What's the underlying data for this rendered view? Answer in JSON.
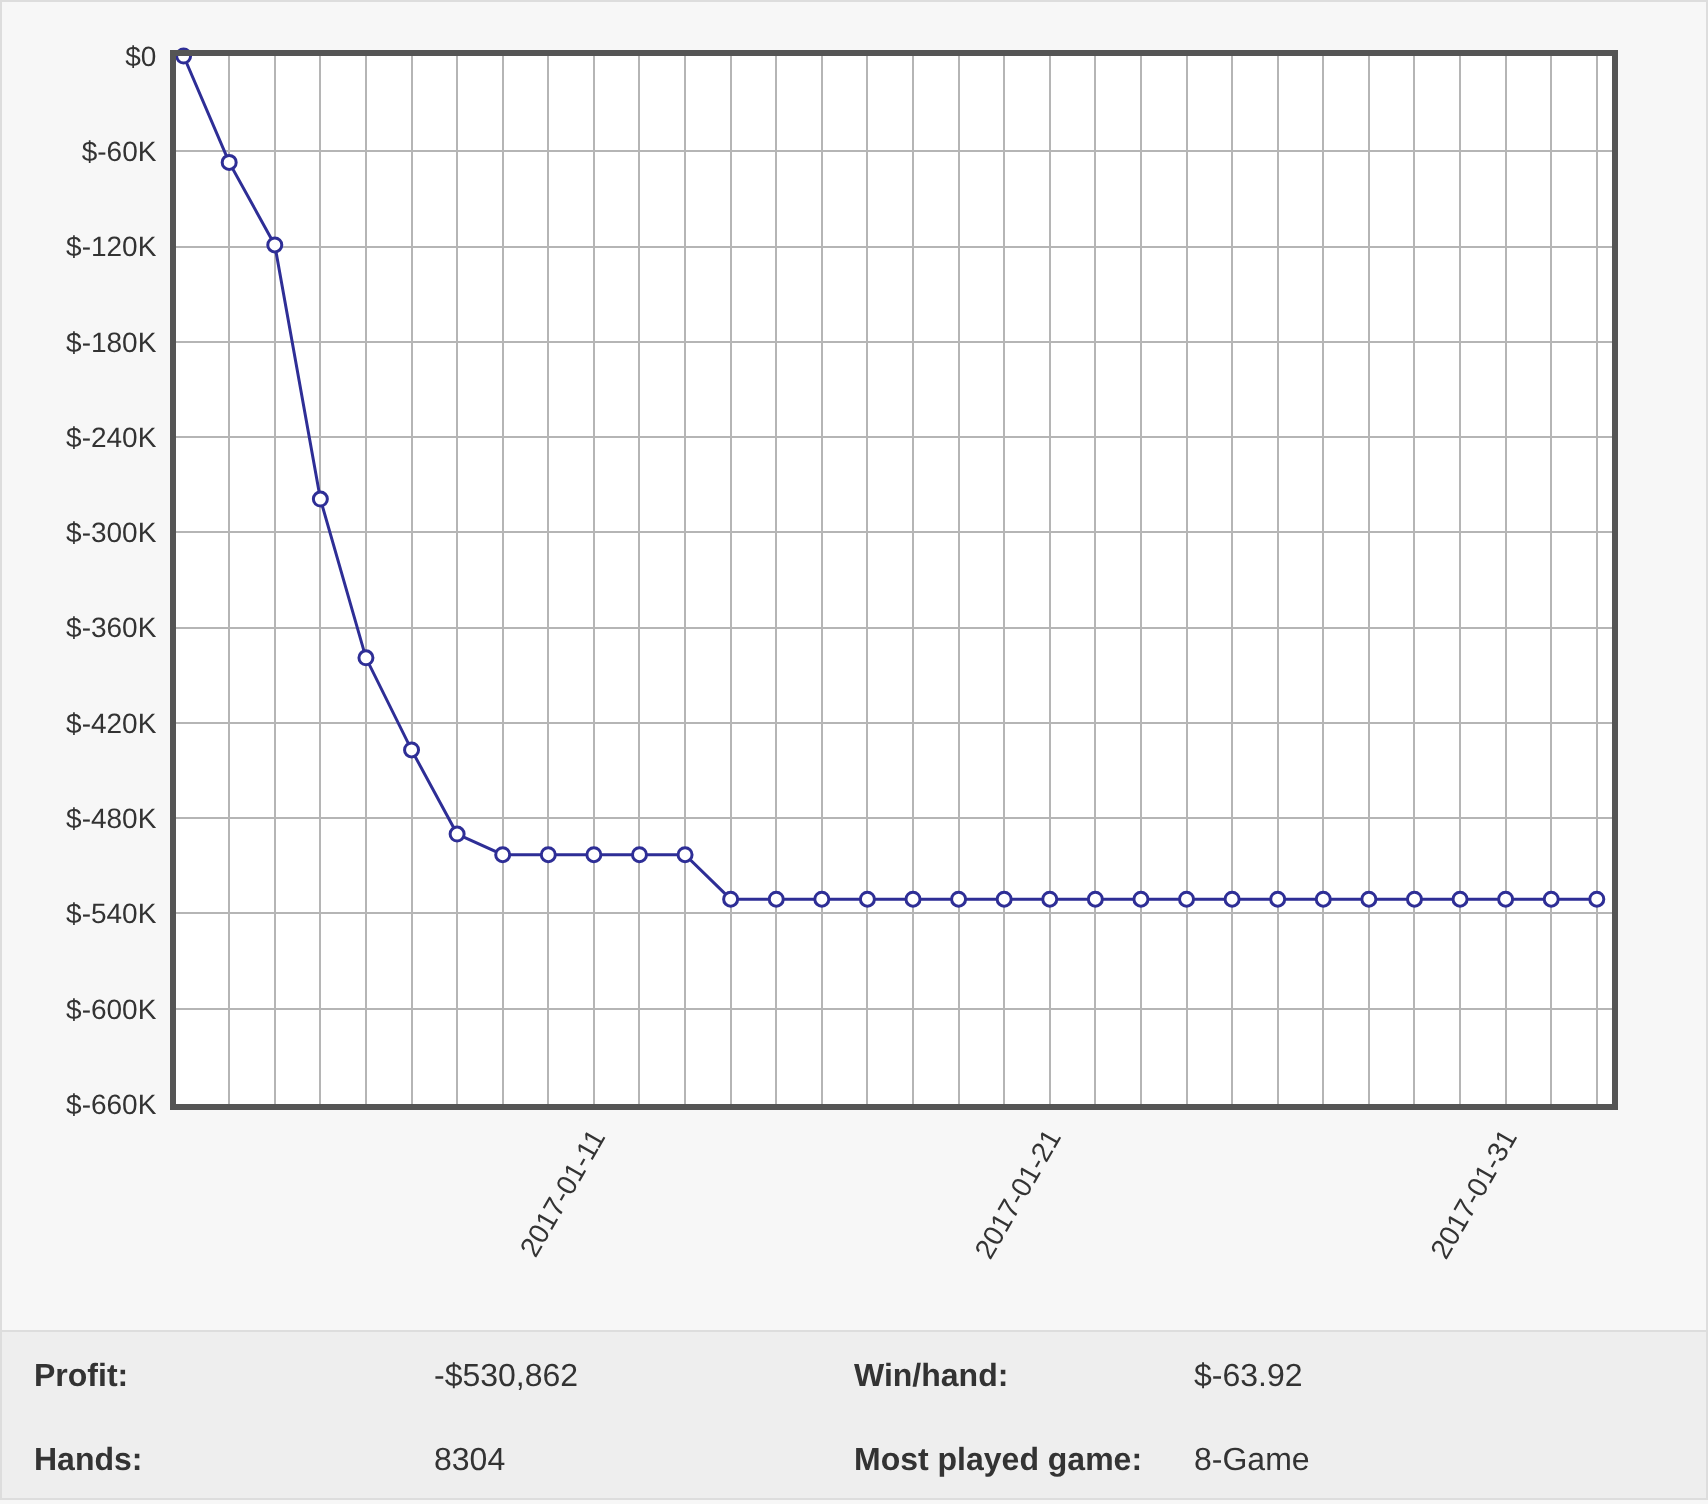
{
  "chart_data": {
    "type": "line",
    "x": [
      "2017-01-02",
      "2017-01-03",
      "2017-01-04",
      "2017-01-05",
      "2017-01-06",
      "2017-01-07",
      "2017-01-08",
      "2017-01-09",
      "2017-01-10",
      "2017-01-11",
      "2017-01-12",
      "2017-01-13",
      "2017-01-14",
      "2017-01-15",
      "2017-01-16",
      "2017-01-17",
      "2017-01-18",
      "2017-01-19",
      "2017-01-20",
      "2017-01-21",
      "2017-01-22",
      "2017-01-23",
      "2017-01-24",
      "2017-01-25",
      "2017-01-26",
      "2017-01-27",
      "2017-01-28",
      "2017-01-29",
      "2017-01-30",
      "2017-01-31",
      "2017-02-01",
      "2017-02-02"
    ],
    "series": [
      {
        "color": "#2e2e96",
        "values": [
          0,
          -67,
          -119,
          -279,
          -379,
          -437,
          -490,
          -503,
          -503,
          -503,
          -503,
          -503,
          -531,
          -531,
          -531,
          -531,
          -531,
          -531,
          -531,
          -531,
          -531,
          -531,
          -531,
          -531,
          -531,
          -531,
          -531,
          -531,
          -531,
          -531,
          -531,
          -531
        ]
      }
    ],
    "xlim": [
      "2017-01-01T20:00",
      "2017-02-02T08:00"
    ],
    "xticks": [
      {
        "value": "2017-01-03",
        "label": null
      },
      {
        "value": "2017-01-04",
        "label": null
      },
      {
        "value": "2017-01-05",
        "label": null
      },
      {
        "value": "2017-01-06",
        "label": null
      },
      {
        "value": "2017-01-07",
        "label": null
      },
      {
        "value": "2017-01-08",
        "label": null
      },
      {
        "value": "2017-01-09",
        "label": null
      },
      {
        "value": "2017-01-10",
        "label": null
      },
      {
        "value": "2017-01-11",
        "label": "2017-01-11"
      },
      {
        "value": "2017-01-12",
        "label": null
      },
      {
        "value": "2017-01-13",
        "label": null
      },
      {
        "value": "2017-01-14",
        "label": null
      },
      {
        "value": "2017-01-15",
        "label": null
      },
      {
        "value": "2017-01-16",
        "label": null
      },
      {
        "value": "2017-01-17",
        "label": null
      },
      {
        "value": "2017-01-18",
        "label": null
      },
      {
        "value": "2017-01-19",
        "label": null
      },
      {
        "value": "2017-01-20",
        "label": null
      },
      {
        "value": "2017-01-21",
        "label": "2017-01-21"
      },
      {
        "value": "2017-01-22",
        "label": null
      },
      {
        "value": "2017-01-23",
        "label": null
      },
      {
        "value": "2017-01-24",
        "label": null
      },
      {
        "value": "2017-01-25",
        "label": null
      },
      {
        "value": "2017-01-26",
        "label": null
      },
      {
        "value": "2017-01-27",
        "label": null
      },
      {
        "value": "2017-01-28",
        "label": null
      },
      {
        "value": "2017-01-29",
        "label": null
      },
      {
        "value": "2017-01-30",
        "label": null
      },
      {
        "value": "2017-01-31",
        "label": "2017-01-31"
      },
      {
        "value": "2017-02-01",
        "label": null
      },
      {
        "value": "2017-02-02",
        "label": null
      }
    ],
    "ylim": [
      -660,
      0
    ],
    "yticks": [
      {
        "value": 0,
        "label": "$0"
      },
      {
        "value": -60,
        "label": "$-60K"
      },
      {
        "value": -120,
        "label": "$-120K"
      },
      {
        "value": -180,
        "label": "$-180K"
      },
      {
        "value": -240,
        "label": "$-240K"
      },
      {
        "value": -300,
        "label": "$-300K"
      },
      {
        "value": -360,
        "label": "$-360K"
      },
      {
        "value": -420,
        "label": "$-420K"
      },
      {
        "value": -480,
        "label": "$-480K"
      },
      {
        "value": -540,
        "label": "$-540K"
      },
      {
        "value": -600,
        "label": "$-600K"
      },
      {
        "value": -660,
        "label": "$-660K"
      }
    ],
    "grid": true,
    "marker": "circle",
    "line_style": "solid",
    "annotations": [
      "Profit:",
      "-$530,862",
      "Win/hand:",
      "$-63.92",
      "Hands:",
      "8304",
      "Most played game:",
      "8-Game"
    ]
  }
}
